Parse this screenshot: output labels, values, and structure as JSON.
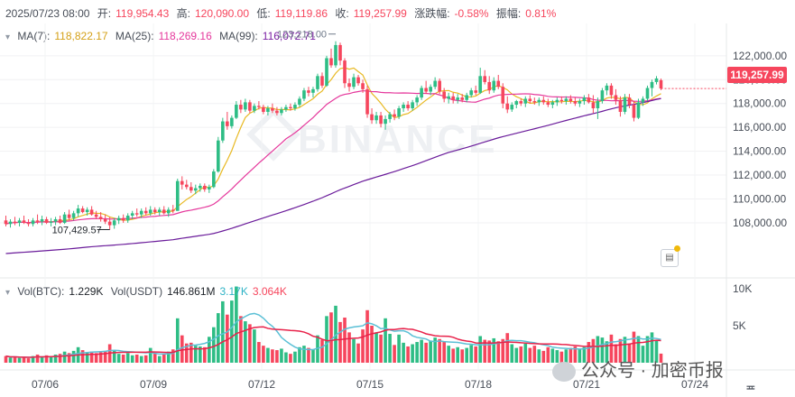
{
  "header": {
    "date": "2025/07/23 08:00",
    "open_label": "开:",
    "open_value": "119,954.43",
    "high_label": "高:",
    "high_value": "120,090.00",
    "low_label": "低:",
    "low_value": "119,119.86",
    "close_label": "收:",
    "close_value": "119,257.99",
    "change_label": "涨跌幅:",
    "change_value": "-0.58%",
    "amplitude_label": "振幅:",
    "amplitude_value": "0.81%"
  },
  "ma": {
    "ma7_label": "MA(7):",
    "ma7_value": "118,822.17",
    "ma25_label": "MA(25):",
    "ma25_value": "118,269.16",
    "ma99_label": "MA(99):",
    "ma99_value": "116,072.71"
  },
  "volume": {
    "btc_label": "Vol(BTC):",
    "btc_value": "1.229K",
    "usdt_label": "Vol(USDT)",
    "usdt_value1": "146.861M",
    "usdt_value2": "3.17K",
    "usdt_value3": "3.064K"
  },
  "price_tag": "119,257.99",
  "high_marker": "123,218.00",
  "low_marker": "107,429.57",
  "watermark": "BINANCE",
  "footer_brand": "公众号 · 加密币报",
  "colors": {
    "up": "#2ebd85",
    "down": "#f6465d",
    "ma7": "#e8b923",
    "ma25": "#e5389c",
    "ma99": "#6a1b9a",
    "vol_ma1": "#e8224a",
    "vol_ma2": "#5bc0d6"
  },
  "chart_data": {
    "type": "candlestick",
    "price_axis": {
      "ylim": [
        105500,
        123500
      ],
      "ticks": [
        108000,
        110000,
        112000,
        114000,
        116000,
        118000,
        120000,
        122000
      ],
      "tick_labels": [
        "108,000.00",
        "110,000.00",
        "112,000.00",
        "114,000.00",
        "116,000.00",
        "118,000.00",
        "120,000.00",
        "122,000.00"
      ]
    },
    "volume_axis": {
      "ylim": [
        0,
        10000
      ],
      "ticks": [
        5000,
        10000
      ],
      "tick_labels": [
        "5K",
        "10K"
      ]
    },
    "x_ticks": [
      "07/06",
      "07/09",
      "07/12",
      "07/15",
      "07/18",
      "07/21",
      "07/24"
    ],
    "candles": [
      {
        "o": 108200,
        "h": 108600,
        "l": 107700,
        "c": 107900,
        "v": 900
      },
      {
        "o": 107900,
        "h": 108300,
        "l": 107600,
        "c": 108100,
        "v": 700
      },
      {
        "o": 108100,
        "h": 108500,
        "l": 107800,
        "c": 108000,
        "v": 800
      },
      {
        "o": 108000,
        "h": 108400,
        "l": 107700,
        "c": 108200,
        "v": 650
      },
      {
        "o": 108200,
        "h": 108600,
        "l": 107900,
        "c": 108000,
        "v": 700
      },
      {
        "o": 108000,
        "h": 108300,
        "l": 107700,
        "c": 107900,
        "v": 600
      },
      {
        "o": 107900,
        "h": 108400,
        "l": 107700,
        "c": 108200,
        "v": 900
      },
      {
        "o": 108200,
        "h": 108700,
        "l": 107900,
        "c": 108100,
        "v": 1100
      },
      {
        "o": 108100,
        "h": 108600,
        "l": 107800,
        "c": 108300,
        "v": 800
      },
      {
        "o": 108300,
        "h": 108500,
        "l": 107900,
        "c": 108000,
        "v": 1000
      },
      {
        "o": 108000,
        "h": 108400,
        "l": 107700,
        "c": 108100,
        "v": 900
      },
      {
        "o": 108100,
        "h": 108500,
        "l": 107800,
        "c": 108300,
        "v": 1100
      },
      {
        "o": 108300,
        "h": 108600,
        "l": 107900,
        "c": 108000,
        "v": 1200
      },
      {
        "o": 108000,
        "h": 108900,
        "l": 107900,
        "c": 108700,
        "v": 1500
      },
      {
        "o": 108700,
        "h": 109100,
        "l": 108200,
        "c": 108400,
        "v": 1300
      },
      {
        "o": 108400,
        "h": 109000,
        "l": 108200,
        "c": 108800,
        "v": 1600
      },
      {
        "o": 108800,
        "h": 109500,
        "l": 108500,
        "c": 109200,
        "v": 2100
      },
      {
        "o": 109200,
        "h": 109400,
        "l": 108800,
        "c": 108900,
        "v": 1700
      },
      {
        "o": 108900,
        "h": 109300,
        "l": 108600,
        "c": 109100,
        "v": 1400
      },
      {
        "o": 109100,
        "h": 109400,
        "l": 108600,
        "c": 108700,
        "v": 1500
      },
      {
        "o": 108700,
        "h": 109000,
        "l": 108300,
        "c": 108500,
        "v": 1300
      },
      {
        "o": 108500,
        "h": 108900,
        "l": 108100,
        "c": 108300,
        "v": 1400
      },
      {
        "o": 108300,
        "h": 108700,
        "l": 107900,
        "c": 108100,
        "v": 1600
      },
      {
        "o": 108100,
        "h": 108500,
        "l": 107430,
        "c": 107800,
        "v": 2500
      },
      {
        "o": 107800,
        "h": 108400,
        "l": 107500,
        "c": 108200,
        "v": 1700
      },
      {
        "o": 108200,
        "h": 108600,
        "l": 107900,
        "c": 108400,
        "v": 1200
      },
      {
        "o": 108400,
        "h": 108700,
        "l": 108000,
        "c": 108200,
        "v": 1100
      },
      {
        "o": 108200,
        "h": 108800,
        "l": 108000,
        "c": 108600,
        "v": 1300
      },
      {
        "o": 108600,
        "h": 109000,
        "l": 108300,
        "c": 108800,
        "v": 1000
      },
      {
        "o": 108800,
        "h": 109200,
        "l": 108500,
        "c": 108700,
        "v": 1100
      },
      {
        "o": 108700,
        "h": 109200,
        "l": 108400,
        "c": 109000,
        "v": 900
      },
      {
        "o": 109000,
        "h": 109300,
        "l": 108600,
        "c": 108800,
        "v": 1000
      },
      {
        "o": 108800,
        "h": 109400,
        "l": 108600,
        "c": 109100,
        "v": 2000
      },
      {
        "o": 109100,
        "h": 109300,
        "l": 108700,
        "c": 108900,
        "v": 1300
      },
      {
        "o": 108900,
        "h": 109300,
        "l": 108600,
        "c": 109100,
        "v": 900
      },
      {
        "o": 109100,
        "h": 109400,
        "l": 108700,
        "c": 108800,
        "v": 1200
      },
      {
        "o": 108800,
        "h": 109300,
        "l": 108500,
        "c": 109100,
        "v": 1500
      },
      {
        "o": 109100,
        "h": 109500,
        "l": 108800,
        "c": 109000,
        "v": 1800
      },
      {
        "o": 109000,
        "h": 111700,
        "l": 109000,
        "c": 111500,
        "v": 6000
      },
      {
        "o": 111500,
        "h": 111900,
        "l": 110800,
        "c": 111200,
        "v": 3700
      },
      {
        "o": 111200,
        "h": 111600,
        "l": 110800,
        "c": 111000,
        "v": 2600
      },
      {
        "o": 111000,
        "h": 111400,
        "l": 110500,
        "c": 110700,
        "v": 2700
      },
      {
        "o": 110700,
        "h": 111200,
        "l": 110400,
        "c": 110900,
        "v": 2300
      },
      {
        "o": 110900,
        "h": 111300,
        "l": 110600,
        "c": 111100,
        "v": 2200
      },
      {
        "o": 111100,
        "h": 111300,
        "l": 110600,
        "c": 110800,
        "v": 2100
      },
      {
        "o": 110800,
        "h": 111200,
        "l": 110500,
        "c": 111000,
        "v": 3500
      },
      {
        "o": 111000,
        "h": 112500,
        "l": 110900,
        "c": 112300,
        "v": 4800
      },
      {
        "o": 112300,
        "h": 115200,
        "l": 112200,
        "c": 114900,
        "v": 6700
      },
      {
        "o": 114900,
        "h": 116800,
        "l": 114700,
        "c": 116500,
        "v": 8300
      },
      {
        "o": 116500,
        "h": 117300,
        "l": 115800,
        "c": 116100,
        "v": 6500
      },
      {
        "o": 116100,
        "h": 117000,
        "l": 115900,
        "c": 116800,
        "v": 8400
      },
      {
        "o": 116800,
        "h": 118200,
        "l": 116700,
        "c": 117900,
        "v": 10300
      },
      {
        "o": 117900,
        "h": 118300,
        "l": 117200,
        "c": 117500,
        "v": 6300
      },
      {
        "o": 117500,
        "h": 118400,
        "l": 117300,
        "c": 118100,
        "v": 5600
      },
      {
        "o": 118100,
        "h": 118300,
        "l": 117200,
        "c": 117400,
        "v": 5200
      },
      {
        "o": 117400,
        "h": 118000,
        "l": 117200,
        "c": 117800,
        "v": 4500
      },
      {
        "o": 117800,
        "h": 118200,
        "l": 117500,
        "c": 117700,
        "v": 2800
      },
      {
        "o": 117700,
        "h": 117900,
        "l": 117100,
        "c": 117300,
        "v": 2300
      },
      {
        "o": 117300,
        "h": 117800,
        "l": 117000,
        "c": 117600,
        "v": 2000
      },
      {
        "o": 117600,
        "h": 118000,
        "l": 117200,
        "c": 117400,
        "v": 1800
      },
      {
        "o": 117400,
        "h": 117700,
        "l": 117000,
        "c": 117200,
        "v": 1700
      },
      {
        "o": 117200,
        "h": 117700,
        "l": 117000,
        "c": 117500,
        "v": 1900
      },
      {
        "o": 117500,
        "h": 117900,
        "l": 117300,
        "c": 117700,
        "v": 1400
      },
      {
        "o": 117700,
        "h": 118000,
        "l": 117400,
        "c": 117600,
        "v": 1200
      },
      {
        "o": 117600,
        "h": 118100,
        "l": 117400,
        "c": 117900,
        "v": 1500
      },
      {
        "o": 117900,
        "h": 118600,
        "l": 117700,
        "c": 118400,
        "v": 2100
      },
      {
        "o": 118400,
        "h": 119300,
        "l": 118200,
        "c": 119100,
        "v": 2300
      },
      {
        "o": 119100,
        "h": 119400,
        "l": 118600,
        "c": 118900,
        "v": 2000
      },
      {
        "o": 118900,
        "h": 119400,
        "l": 118500,
        "c": 119200,
        "v": 1800
      },
      {
        "o": 119200,
        "h": 120500,
        "l": 119000,
        "c": 120300,
        "v": 3700
      },
      {
        "o": 120300,
        "h": 120600,
        "l": 119300,
        "c": 119500,
        "v": 3100
      },
      {
        "o": 119500,
        "h": 122000,
        "l": 119400,
        "c": 121800,
        "v": 6300
      },
      {
        "o": 121800,
        "h": 122600,
        "l": 121000,
        "c": 121200,
        "v": 6800
      },
      {
        "o": 121200,
        "h": 123218,
        "l": 121000,
        "c": 122900,
        "v": 7700
      },
      {
        "o": 122900,
        "h": 123100,
        "l": 121200,
        "c": 121600,
        "v": 5500
      },
      {
        "o": 121600,
        "h": 121800,
        "l": 119300,
        "c": 119700,
        "v": 6100
      },
      {
        "o": 119700,
        "h": 120100,
        "l": 119000,
        "c": 119400,
        "v": 4100
      },
      {
        "o": 119400,
        "h": 120500,
        "l": 119200,
        "c": 120200,
        "v": 3200
      },
      {
        "o": 120200,
        "h": 120400,
        "l": 119500,
        "c": 119700,
        "v": 2600
      },
      {
        "o": 119700,
        "h": 120000,
        "l": 118900,
        "c": 119200,
        "v": 4500
      },
      {
        "o": 119200,
        "h": 119500,
        "l": 116800,
        "c": 117100,
        "v": 7100
      },
      {
        "o": 117100,
        "h": 117600,
        "l": 116300,
        "c": 116600,
        "v": 5000
      },
      {
        "o": 116600,
        "h": 117300,
        "l": 116300,
        "c": 117000,
        "v": 4100
      },
      {
        "o": 117000,
        "h": 117300,
        "l": 116000,
        "c": 116300,
        "v": 3800
      },
      {
        "o": 116300,
        "h": 117000,
        "l": 115800,
        "c": 116700,
        "v": 6000
      },
      {
        "o": 116700,
        "h": 117300,
        "l": 116400,
        "c": 117100,
        "v": 3900
      },
      {
        "o": 117100,
        "h": 117500,
        "l": 116600,
        "c": 116900,
        "v": 2400
      },
      {
        "o": 116900,
        "h": 117800,
        "l": 116700,
        "c": 117600,
        "v": 3800
      },
      {
        "o": 117600,
        "h": 118100,
        "l": 117300,
        "c": 117900,
        "v": 2700
      },
      {
        "o": 117900,
        "h": 118200,
        "l": 117400,
        "c": 117600,
        "v": 2200
      },
      {
        "o": 117600,
        "h": 118300,
        "l": 117400,
        "c": 118100,
        "v": 2500
      },
      {
        "o": 118100,
        "h": 118700,
        "l": 117800,
        "c": 118500,
        "v": 2800
      },
      {
        "o": 118500,
        "h": 119500,
        "l": 118300,
        "c": 119300,
        "v": 3100
      },
      {
        "o": 119300,
        "h": 119900,
        "l": 118800,
        "c": 119000,
        "v": 2700
      },
      {
        "o": 119000,
        "h": 119600,
        "l": 118700,
        "c": 119400,
        "v": 3000
      },
      {
        "o": 119400,
        "h": 120200,
        "l": 119200,
        "c": 119900,
        "v": 3400
      },
      {
        "o": 119900,
        "h": 120100,
        "l": 118800,
        "c": 119000,
        "v": 3200
      },
      {
        "o": 119000,
        "h": 119300,
        "l": 118100,
        "c": 118400,
        "v": 2900
      },
      {
        "o": 118400,
        "h": 118900,
        "l": 118000,
        "c": 118600,
        "v": 2300
      },
      {
        "o": 118600,
        "h": 118900,
        "l": 118000,
        "c": 118300,
        "v": 1900
      },
      {
        "o": 118300,
        "h": 118800,
        "l": 118000,
        "c": 118500,
        "v": 2100
      },
      {
        "o": 118500,
        "h": 118800,
        "l": 118100,
        "c": 118300,
        "v": 1800
      },
      {
        "o": 118300,
        "h": 118900,
        "l": 118100,
        "c": 118700,
        "v": 2000
      },
      {
        "o": 118700,
        "h": 119300,
        "l": 118500,
        "c": 119100,
        "v": 2400
      },
      {
        "o": 119100,
        "h": 119500,
        "l": 118700,
        "c": 118900,
        "v": 2200
      },
      {
        "o": 118900,
        "h": 121000,
        "l": 118800,
        "c": 120300,
        "v": 3600
      },
      {
        "o": 120300,
        "h": 120800,
        "l": 119600,
        "c": 119800,
        "v": 3100
      },
      {
        "o": 119800,
        "h": 120300,
        "l": 118800,
        "c": 119100,
        "v": 3000
      },
      {
        "o": 119100,
        "h": 120200,
        "l": 118900,
        "c": 119900,
        "v": 3300
      },
      {
        "o": 119900,
        "h": 120400,
        "l": 119200,
        "c": 119400,
        "v": 2900
      },
      {
        "o": 119400,
        "h": 119700,
        "l": 117600,
        "c": 118000,
        "v": 3200
      },
      {
        "o": 118000,
        "h": 118600,
        "l": 117200,
        "c": 117500,
        "v": 4000
      },
      {
        "o": 117500,
        "h": 118100,
        "l": 117300,
        "c": 117900,
        "v": 2500
      },
      {
        "o": 117900,
        "h": 118300,
        "l": 117600,
        "c": 118200,
        "v": 2000
      },
      {
        "o": 118200,
        "h": 118400,
        "l": 117800,
        "c": 118000,
        "v": 2200
      },
      {
        "o": 118000,
        "h": 118600,
        "l": 117700,
        "c": 118400,
        "v": 2600
      },
      {
        "o": 118400,
        "h": 118700,
        "l": 118000,
        "c": 118200,
        "v": 2000
      },
      {
        "o": 118200,
        "h": 118500,
        "l": 117900,
        "c": 118100,
        "v": 2300
      },
      {
        "o": 118100,
        "h": 118500,
        "l": 117800,
        "c": 118300,
        "v": 1800
      },
      {
        "o": 118300,
        "h": 118600,
        "l": 117900,
        "c": 118100,
        "v": 1600
      },
      {
        "o": 118100,
        "h": 118400,
        "l": 117700,
        "c": 117900,
        "v": 2100
      },
      {
        "o": 117900,
        "h": 118300,
        "l": 117600,
        "c": 118100,
        "v": 1900
      },
      {
        "o": 118100,
        "h": 118500,
        "l": 117800,
        "c": 118300,
        "v": 1700
      },
      {
        "o": 118300,
        "h": 118600,
        "l": 118000,
        "c": 118200,
        "v": 1500
      },
      {
        "o": 118200,
        "h": 118600,
        "l": 117900,
        "c": 118400,
        "v": 1800
      },
      {
        "o": 118400,
        "h": 118700,
        "l": 118000,
        "c": 118200,
        "v": 2000
      },
      {
        "o": 118200,
        "h": 118500,
        "l": 117800,
        "c": 118000,
        "v": 2200
      },
      {
        "o": 118000,
        "h": 118400,
        "l": 117700,
        "c": 118200,
        "v": 1900
      },
      {
        "o": 118200,
        "h": 118700,
        "l": 117900,
        "c": 118500,
        "v": 2100
      },
      {
        "o": 118500,
        "h": 118800,
        "l": 118000,
        "c": 118100,
        "v": 2800
      },
      {
        "o": 118100,
        "h": 118700,
        "l": 117200,
        "c": 117600,
        "v": 3200
      },
      {
        "o": 117600,
        "h": 118500,
        "l": 116700,
        "c": 118200,
        "v": 3600
      },
      {
        "o": 118200,
        "h": 119300,
        "l": 118000,
        "c": 119100,
        "v": 3400
      },
      {
        "o": 119100,
        "h": 119700,
        "l": 118700,
        "c": 119500,
        "v": 2900
      },
      {
        "o": 119500,
        "h": 119700,
        "l": 118400,
        "c": 118700,
        "v": 3800
      },
      {
        "o": 118700,
        "h": 119200,
        "l": 117900,
        "c": 118300,
        "v": 2500
      },
      {
        "o": 118300,
        "h": 118600,
        "l": 116900,
        "c": 117300,
        "v": 3200
      },
      {
        "o": 117300,
        "h": 118800,
        "l": 117100,
        "c": 118500,
        "v": 3500
      },
      {
        "o": 118500,
        "h": 118800,
        "l": 117600,
        "c": 117900,
        "v": 2600
      },
      {
        "o": 117900,
        "h": 118200,
        "l": 116500,
        "c": 116800,
        "v": 4200
      },
      {
        "o": 116800,
        "h": 118400,
        "l": 116700,
        "c": 118100,
        "v": 3600
      },
      {
        "o": 118100,
        "h": 118600,
        "l": 117800,
        "c": 118400,
        "v": 2300
      },
      {
        "o": 118400,
        "h": 119500,
        "l": 118200,
        "c": 119300,
        "v": 3600
      },
      {
        "o": 119300,
        "h": 120000,
        "l": 118600,
        "c": 119800,
        "v": 4100
      },
      {
        "o": 119800,
        "h": 120300,
        "l": 119600,
        "c": 120100,
        "v": 3100
      },
      {
        "o": 119954,
        "h": 120090,
        "l": 119120,
        "c": 119258,
        "v": 1229
      }
    ]
  }
}
